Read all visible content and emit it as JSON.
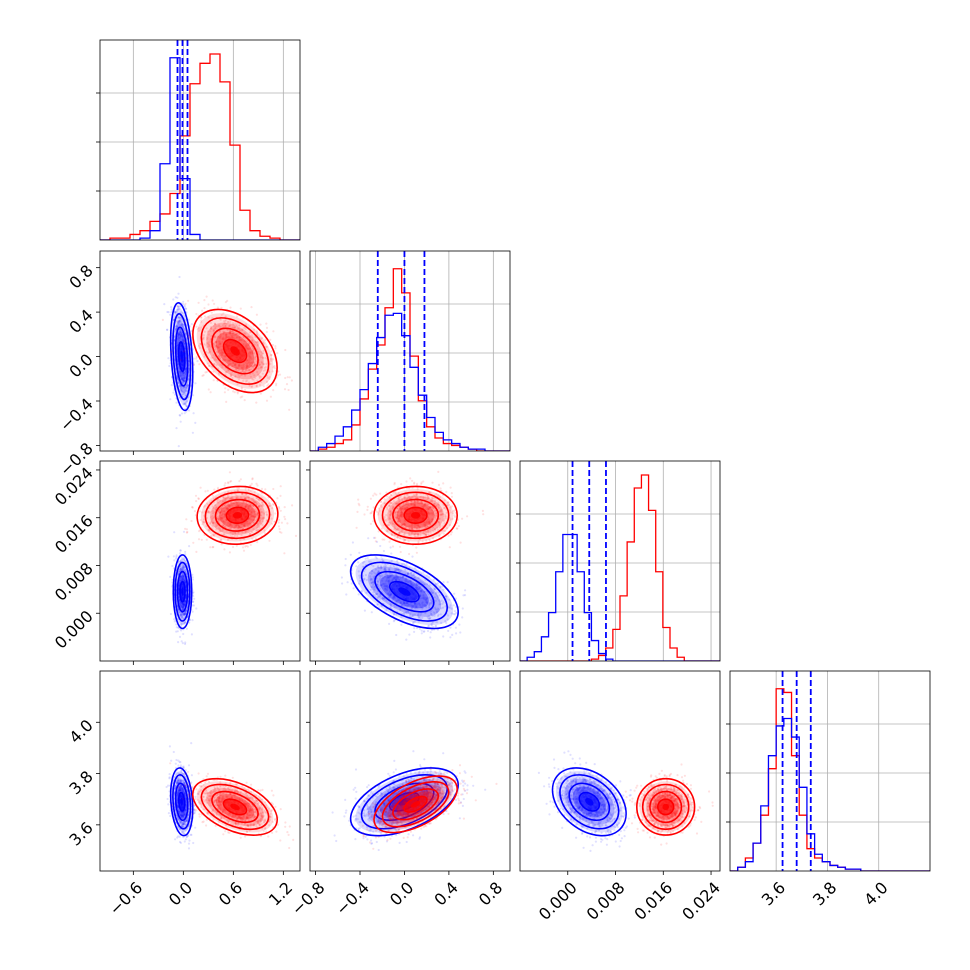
{
  "chart_data": {
    "type": "corner",
    "colors": {
      "blue": "#0000ff",
      "red": "#ff0000"
    },
    "grid": true,
    "parameters": [
      {
        "range": [
          -1.0,
          1.4
        ],
        "ticks": [
          -0.6,
          0.0,
          0.6,
          1.2
        ],
        "tick_labels": [
          "−0.6",
          "0.0",
          "0.6",
          "1.2"
        ]
      },
      {
        "range": [
          -0.85,
          0.95
        ],
        "ticks": [
          -0.8,
          -0.4,
          0.0,
          0.4,
          0.8
        ],
        "tick_labels": [
          "−0.8",
          "−0.4",
          "0.0",
          "0.4",
          "0.8"
        ]
      },
      {
        "range": [
          -0.008,
          0.0255
        ],
        "ticks": [
          0.0,
          0.008,
          0.016,
          0.024
        ],
        "tick_labels": [
          "0.000",
          "0.008",
          "0.016",
          "0.024"
        ]
      },
      {
        "range": [
          3.42,
          4.2
        ],
        "ticks": [
          3.6,
          3.8,
          4.0
        ],
        "tick_labels": [
          "3.6",
          "3.8",
          "4.0"
        ]
      }
    ],
    "histograms": [
      {
        "bins": [
          -1.0,
          1.4,
          20
        ],
        "ymax": 1.0,
        "blue": [
          0,
          0,
          0,
          0,
          0.01,
          0.05,
          0.41,
          0.98,
          0.33,
          0.03,
          0,
          0,
          0,
          0,
          0,
          0,
          0,
          0,
          0,
          0
        ],
        "red": [
          0,
          0.01,
          0.01,
          0.03,
          0.05,
          0.1,
          0.14,
          0.25,
          0.56,
          0.84,
          0.95,
          1.0,
          0.85,
          0.51,
          0.16,
          0.05,
          0.02,
          0.01,
          0,
          0
        ],
        "quantiles_blue": [
          -0.07,
          -0.01,
          0.05
        ]
      },
      {
        "bins": [
          -0.85,
          0.95,
          24
        ],
        "ymax": 1.0,
        "blue": [
          0,
          0.02,
          0.04,
          0.08,
          0.13,
          0.22,
          0.33,
          0.47,
          0.61,
          0.73,
          0.74,
          0.62,
          0.45,
          0.3,
          0.18,
          0.1,
          0.06,
          0.04,
          0.02,
          0.01,
          0.01,
          0,
          0,
          0
        ],
        "red": [
          0,
          0.01,
          0.02,
          0.04,
          0.06,
          0.14,
          0.28,
          0.44,
          0.57,
          0.77,
          0.98,
          0.85,
          0.51,
          0.27,
          0.13,
          0.07,
          0.04,
          0.03,
          0.02,
          0.01,
          0,
          0,
          0,
          0
        ],
        "quantiles_blue": [
          -0.24,
          0.0,
          0.18
        ]
      },
      {
        "bins": [
          -0.008,
          0.0255,
          28
        ],
        "ymax": 1.0,
        "blue": [
          0,
          0.02,
          0.05,
          0.13,
          0.26,
          0.48,
          0.68,
          0.68,
          0.48,
          0.26,
          0.11,
          0.04,
          0.01,
          0,
          0,
          0,
          0,
          0,
          0,
          0,
          0,
          0,
          0,
          0,
          0,
          0,
          0,
          0
        ],
        "red": [
          0,
          0,
          0,
          0,
          0,
          0,
          0,
          0,
          0,
          0,
          0.01,
          0.03,
          0.07,
          0.17,
          0.35,
          0.64,
          0.93,
          1.0,
          0.81,
          0.48,
          0.18,
          0.07,
          0.02,
          0,
          0,
          0,
          0,
          0
        ],
        "quantiles_blue": [
          0.0008,
          0.0036,
          0.0064
        ]
      },
      {
        "bins": [
          3.42,
          4.2,
          26
        ],
        "ymax": 1.0,
        "blue": [
          0,
          0.02,
          0.05,
          0.15,
          0.35,
          0.62,
          0.78,
          0.82,
          0.72,
          0.45,
          0.2,
          0.09,
          0.05,
          0.03,
          0.02,
          0.01,
          0.01,
          0,
          0,
          0,
          0,
          0,
          0,
          0,
          0,
          0
        ],
        "red": [
          0,
          0.02,
          0.07,
          0.15,
          0.3,
          0.55,
          0.98,
          0.96,
          0.62,
          0.3,
          0.12,
          0.07,
          0.05,
          0.03,
          0.02,
          0.01,
          0.01,
          0,
          0,
          0,
          0,
          0,
          0,
          0,
          0,
          0
        ],
        "quantiles_blue": [
          3.625,
          3.68,
          3.735
        ]
      }
    ],
    "pairs": [
      {
        "x": 0,
        "y": 1,
        "blue": {
          "mean": [
            -0.02,
            0.0
          ],
          "sd": [
            0.06,
            0.22
          ],
          "rho": -0.3
        },
        "red": {
          "mean": [
            0.62,
            0.05
          ],
          "sd": [
            0.23,
            0.17
          ],
          "rho": -0.4
        }
      },
      {
        "x": 0,
        "y": 2,
        "blue": {
          "mean": [
            -0.01,
            0.0036
          ],
          "sd": [
            0.05,
            0.0028
          ],
          "rho": 0.0
        },
        "red": {
          "mean": [
            0.65,
            0.0164
          ],
          "sd": [
            0.22,
            0.0022
          ],
          "rho": 0.05
        }
      },
      {
        "x": 1,
        "y": 2,
        "blue": {
          "mean": [
            0.0,
            0.0036
          ],
          "sd": [
            0.22,
            0.0028
          ],
          "rho": -0.55
        },
        "red": {
          "mean": [
            0.1,
            0.0164
          ],
          "sd": [
            0.17,
            0.0022
          ],
          "rho": 0.0
        }
      },
      {
        "x": 0,
        "y": 3,
        "blue": {
          "mean": [
            -0.02,
            3.69
          ],
          "sd": [
            0.06,
            0.06
          ],
          "rho": -0.2
        },
        "red": {
          "mean": [
            0.62,
            3.67
          ],
          "sd": [
            0.23,
            0.05
          ],
          "rho": -0.45
        }
      },
      {
        "x": 1,
        "y": 3,
        "blue": {
          "mean": [
            0.0,
            3.69
          ],
          "sd": [
            0.22,
            0.06
          ],
          "rho": 0.5
        },
        "red": {
          "mean": [
            0.1,
            3.68
          ],
          "sd": [
            0.17,
            0.05
          ],
          "rho": 0.55
        }
      },
      {
        "x": 2,
        "y": 3,
        "blue": {
          "mean": [
            0.0036,
            3.69
          ],
          "sd": [
            0.0028,
            0.06
          ],
          "rho": -0.35
        },
        "red": {
          "mean": [
            0.0164,
            3.67
          ],
          "sd": [
            0.0022,
            0.05
          ],
          "rho": 0.0
        }
      }
    ]
  }
}
